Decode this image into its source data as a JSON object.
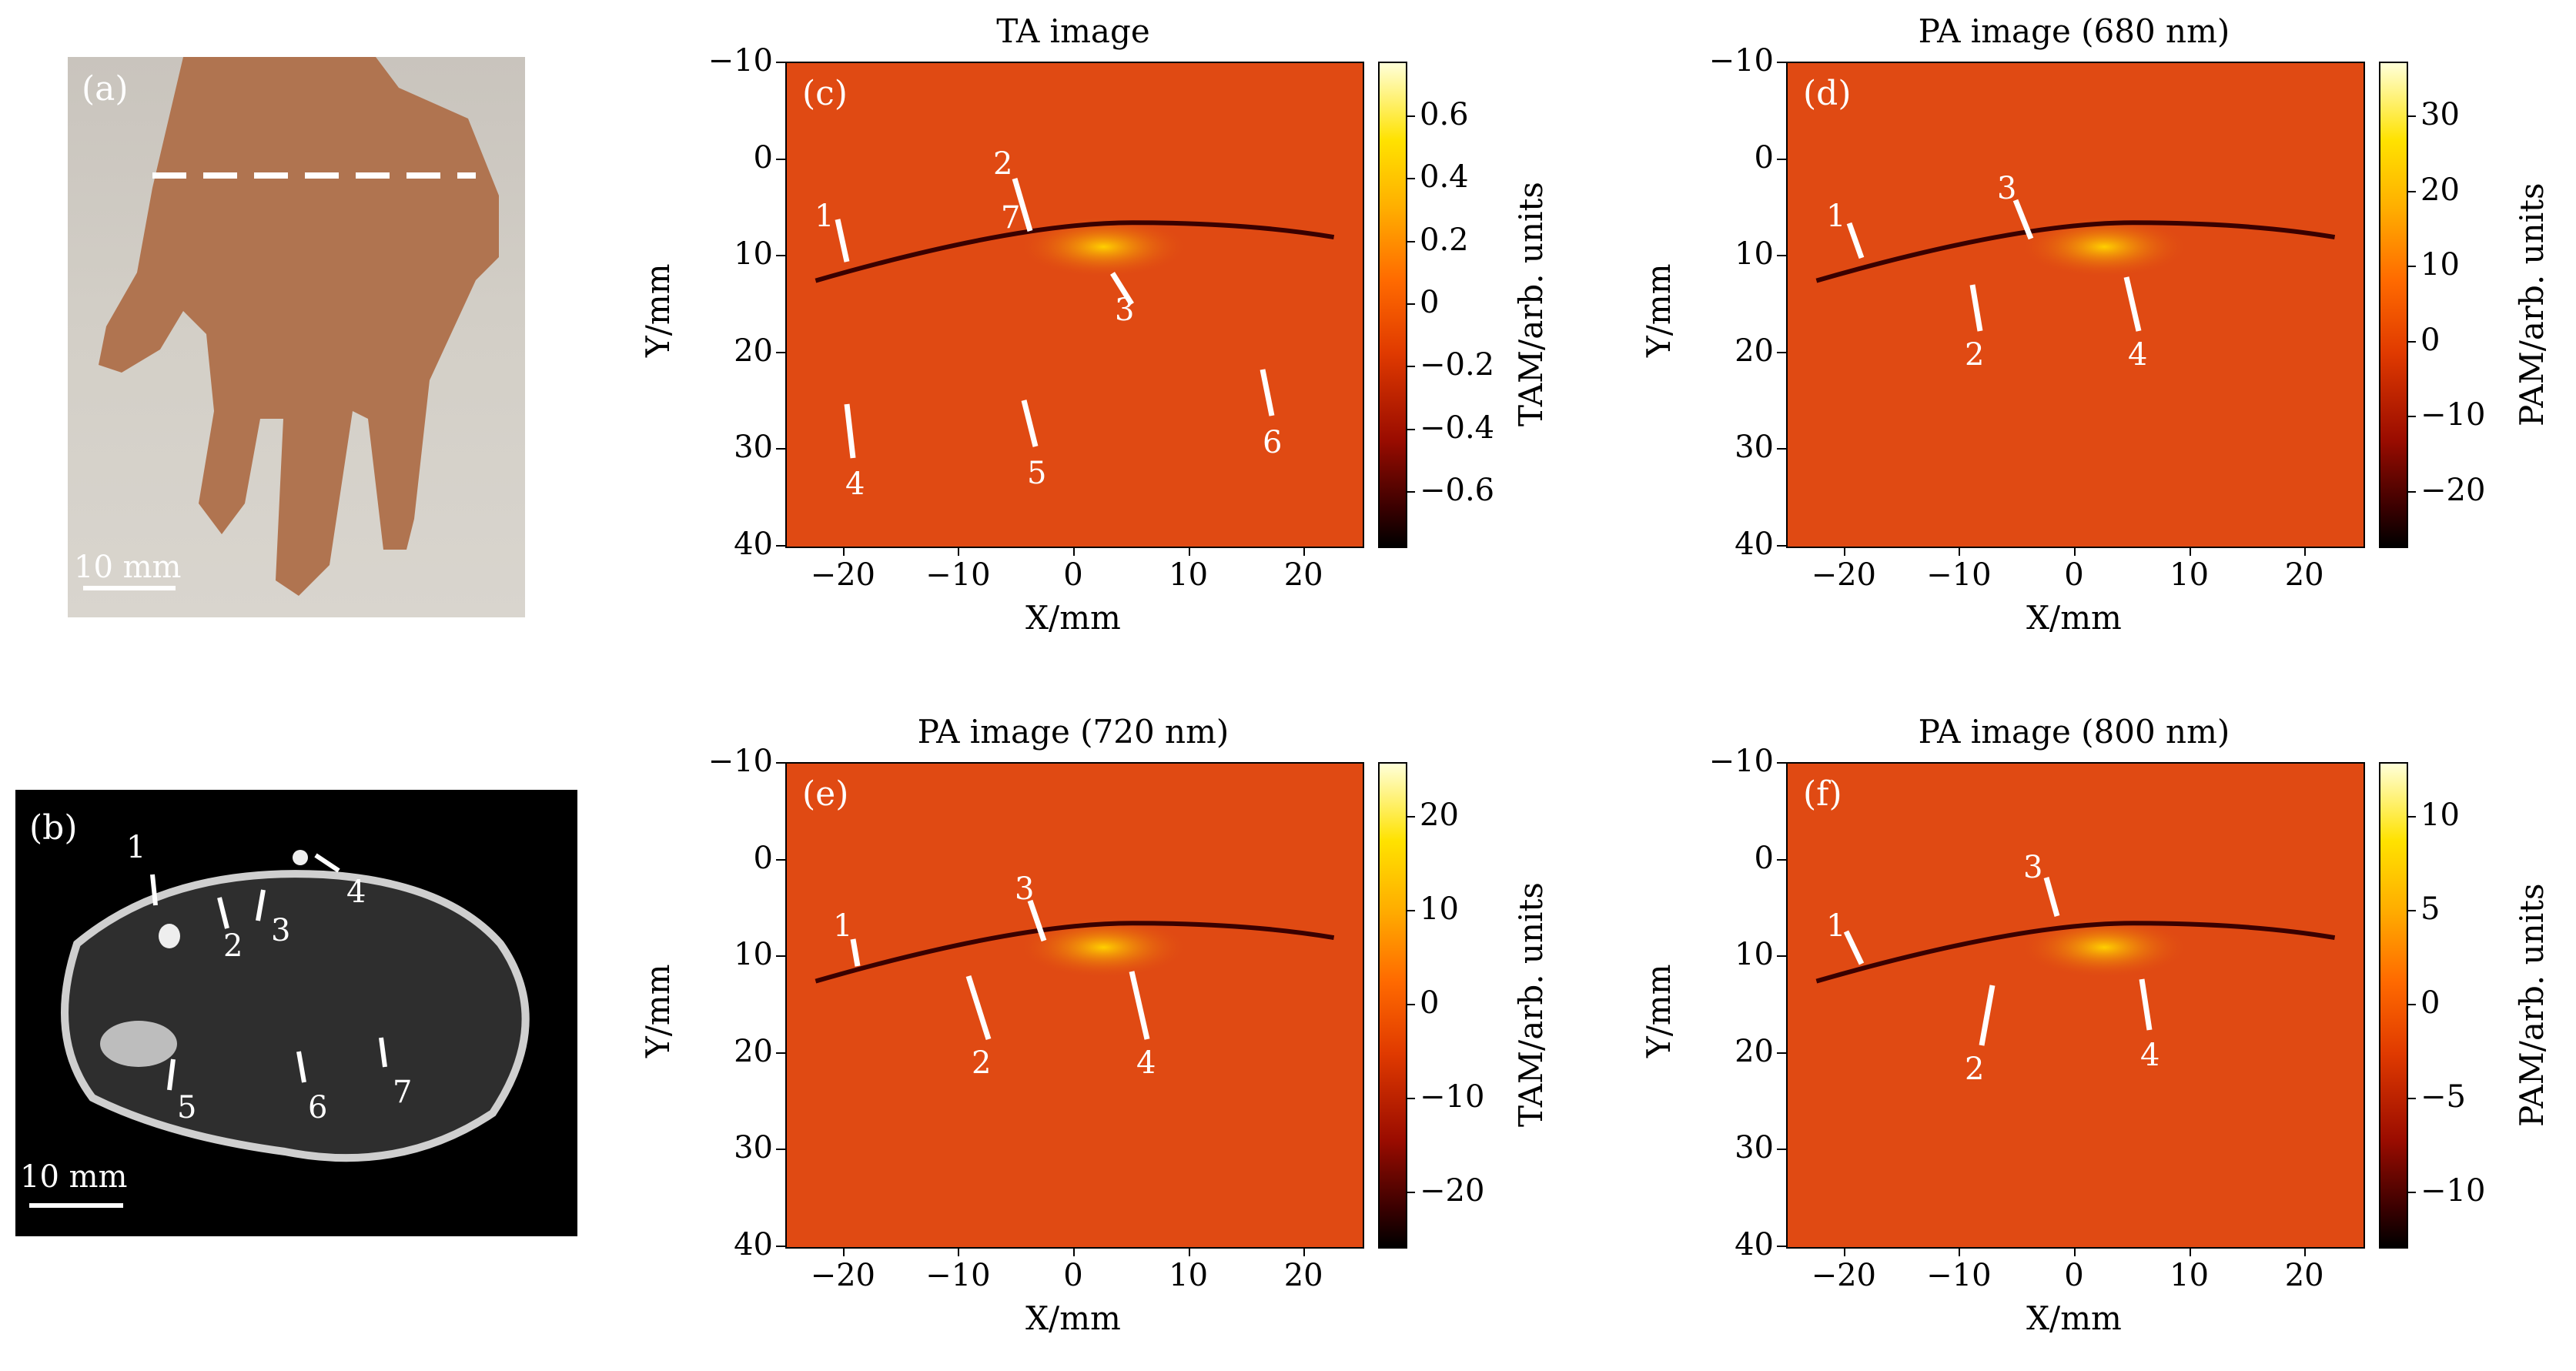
{
  "panel_a": {
    "label": "(a)",
    "scale": "10 mm"
  },
  "panel_b": {
    "label": "(b)",
    "scale": "10 mm",
    "markers": [
      "1",
      "2",
      "3",
      "4",
      "5",
      "6",
      "7"
    ]
  },
  "plots": [
    {
      "id": "c",
      "label": "(c)",
      "title": "TA image",
      "cbar_title": "TAM/arb. units",
      "cbar_ticks": [
        "0.6",
        "0.4",
        "0.2",
        "0",
        "−0.2",
        "−0.4",
        "−0.6"
      ],
      "markers": [
        "1",
        "2",
        "3",
        "4",
        "5",
        "6",
        "7"
      ]
    },
    {
      "id": "d",
      "label": "(d)",
      "title": "PA image (680 nm)",
      "cbar_title": "PAM/arb. units",
      "cbar_ticks": [
        "30",
        "20",
        "10",
        "0",
        "−10",
        "−20"
      ],
      "markers": [
        "1",
        "2",
        "3",
        "4"
      ]
    },
    {
      "id": "e",
      "label": "(e)",
      "title": "PA image (720 nm)",
      "cbar_title": "TAM/arb. units",
      "cbar_ticks": [
        "20",
        "10",
        "0",
        "−10",
        "−20"
      ],
      "markers": [
        "1",
        "2",
        "3",
        "4"
      ]
    },
    {
      "id": "f",
      "label": "(f)",
      "title": "PA image (800 nm)",
      "cbar_title": "PAM/arb. units",
      "cbar_ticks": [
        "10",
        "5",
        "0",
        "−5",
        "−10"
      ],
      "markers": [
        "1",
        "2",
        "3",
        "4"
      ]
    }
  ],
  "axes": {
    "xlabel": "X/mm",
    "ylabel": "Y/mm",
    "x_ticks": [
      "−20",
      "−10",
      "0",
      "10",
      "20"
    ],
    "y_ticks": [
      "−10",
      "0",
      "10",
      "20",
      "30",
      "40"
    ]
  },
  "colors": {
    "plot_base": "#e04a13",
    "marker": "#ffffff"
  }
}
